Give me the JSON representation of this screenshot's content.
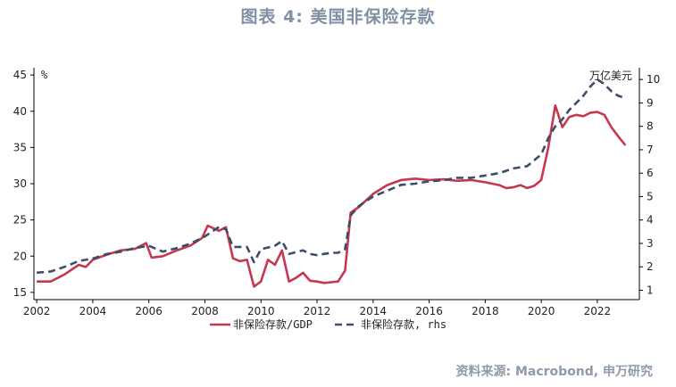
{
  "title": "图表 4:  美国非保险存款",
  "source": "资料来源: Macrobond, 申万研究",
  "colors": {
    "ratio_line": "#c5384f",
    "deposits_line": "#3b4d6b",
    "title": "#7f8fa6",
    "source": "#8e9aa8"
  },
  "chart_data": {
    "type": "line",
    "title": "",
    "xlabel": "",
    "grid": false,
    "legend_position": "bottom",
    "x_ticks": [
      "2002",
      "2004",
      "2006",
      "2008",
      "2010",
      "2012",
      "2014",
      "2016",
      "2018",
      "2020",
      "2022"
    ],
    "xlim": [
      2001.9,
      2023.5
    ],
    "y_left": {
      "label": "%",
      "lim": [
        14,
        46
      ],
      "ticks": [
        "15",
        "20",
        "25",
        "30",
        "35",
        "40",
        "45"
      ]
    },
    "y_right": {
      "label": "万亿美元",
      "lim": [
        0.6,
        10.5
      ],
      "ticks": [
        "1",
        "2",
        "3",
        "4",
        "5",
        "6",
        "7",
        "8",
        "9",
        "10"
      ]
    },
    "series": [
      {
        "name": "非保险存款/GDP",
        "axis": "left",
        "style": "solid",
        "x": [
          2002.0,
          2002.5,
          2003.0,
          2003.5,
          2003.75,
          2004.0,
          2004.5,
          2005.0,
          2005.5,
          2005.9,
          2006.1,
          2006.5,
          2007.0,
          2007.5,
          2007.9,
          2008.1,
          2008.5,
          2008.75,
          2009.0,
          2009.25,
          2009.5,
          2009.75,
          2010.0,
          2010.25,
          2010.5,
          2010.75,
          2011.0,
          2011.25,
          2011.5,
          2011.75,
          2012.0,
          2012.25,
          2012.5,
          2012.75,
          2013.0,
          2013.2,
          2013.5,
          2014.0,
          2014.5,
          2015.0,
          2015.5,
          2016.0,
          2016.5,
          2017.0,
          2017.5,
          2018.0,
          2018.5,
          2018.75,
          2019.0,
          2019.25,
          2019.5,
          2019.75,
          2020.0,
          2020.25,
          2020.5,
          2020.75,
          2021.0,
          2021.25,
          2021.5,
          2021.75,
          2022.0,
          2022.25,
          2022.5,
          2022.75,
          2023.0
        ],
        "values": [
          16.5,
          16.5,
          17.5,
          18.8,
          18.5,
          19.5,
          20.2,
          20.8,
          21.0,
          21.8,
          19.8,
          20.0,
          20.8,
          21.5,
          22.5,
          24.2,
          23.5,
          24.0,
          19.7,
          19.3,
          19.5,
          15.8,
          16.5,
          19.5,
          18.8,
          20.8,
          16.5,
          17.0,
          17.7,
          16.6,
          16.5,
          16.3,
          16.4,
          16.5,
          18.0,
          26.0,
          26.8,
          28.6,
          29.8,
          30.5,
          30.7,
          30.5,
          30.6,
          30.4,
          30.5,
          30.2,
          29.8,
          29.4,
          29.5,
          29.8,
          29.4,
          29.7,
          30.5,
          35.0,
          40.8,
          37.8,
          39.2,
          39.5,
          39.3,
          39.8,
          39.9,
          39.5,
          37.8,
          36.5,
          35.3
        ]
      },
      {
        "name": "非保险存款, rhs",
        "axis": "right",
        "style": "dashed",
        "x": [
          2002.0,
          2002.5,
          2003.0,
          2003.5,
          2004.0,
          2004.5,
          2005.0,
          2005.5,
          2006.0,
          2006.5,
          2007.0,
          2007.5,
          2008.0,
          2008.5,
          2008.75,
          2009.0,
          2009.5,
          2009.75,
          2010.0,
          2010.5,
          2010.75,
          2011.0,
          2011.5,
          2011.75,
          2012.0,
          2012.5,
          2012.75,
          2013.0,
          2013.2,
          2013.5,
          2014.0,
          2014.5,
          2015.0,
          2015.5,
          2016.0,
          2016.5,
          2017.0,
          2017.5,
          2018.0,
          2018.5,
          2019.0,
          2019.5,
          2020.0,
          2020.25,
          2020.5,
          2020.75,
          2021.0,
          2021.5,
          2021.75,
          2022.0,
          2022.25,
          2022.5,
          2022.75,
          2023.0
        ],
        "values": [
          1.75,
          1.8,
          2.0,
          2.25,
          2.35,
          2.55,
          2.65,
          2.8,
          2.9,
          2.65,
          2.8,
          3.0,
          3.3,
          3.7,
          3.6,
          2.85,
          2.85,
          2.2,
          2.75,
          2.9,
          3.1,
          2.55,
          2.7,
          2.55,
          2.5,
          2.6,
          2.6,
          2.75,
          4.2,
          4.6,
          5.0,
          5.25,
          5.5,
          5.55,
          5.65,
          5.7,
          5.8,
          5.8,
          5.9,
          6.0,
          6.2,
          6.3,
          6.8,
          7.5,
          8.0,
          8.3,
          8.7,
          9.3,
          9.7,
          10.0,
          9.8,
          9.5,
          9.3,
          9.2
        ]
      }
    ]
  }
}
